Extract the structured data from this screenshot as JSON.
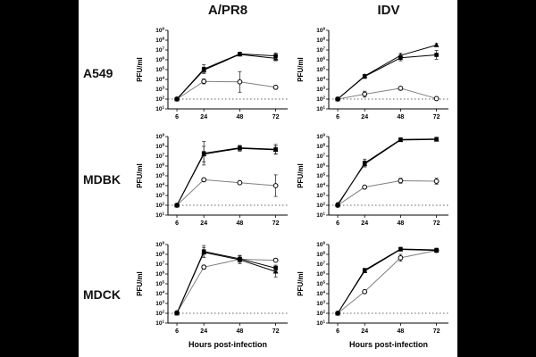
{
  "figure": {
    "background": "#000000",
    "panel_background": "#ffffff",
    "ink_color": "#000000",
    "open_series_line_color": "#808080",
    "columns": [
      "A/PR8",
      "IDV"
    ],
    "rows": [
      "A549",
      "MDBK",
      "MDCK"
    ]
  },
  "axes": {
    "ylabel": "PFU/ml",
    "xlabel": "Hours post-infection",
    "x_ticks": [
      6,
      24,
      48,
      72
    ],
    "x_range": [
      0,
      80
    ],
    "y_scale": "log10",
    "y_tick_exponents": [
      9,
      8,
      7,
      6,
      5,
      4,
      3,
      2,
      1
    ],
    "ylog_range": [
      1,
      9
    ],
    "detection_limit_log10": 2,
    "detection_limit_style": "dotted"
  },
  "chart_data": [
    {
      "type": "line",
      "cell_line": "A549",
      "virus": "A/PR8",
      "show_xlabel": false,
      "x": [
        6,
        24,
        48,
        72
      ],
      "series": [
        {
          "name": "filled-square",
          "marker": "square",
          "log10_values": [
            2.0,
            5.05,
            6.6,
            6.4
          ],
          "log10_err": [
            0,
            0.45,
            0.12,
            0.3
          ]
        },
        {
          "name": "filled-triangle",
          "marker": "triangle",
          "log10_values": [
            2.0,
            4.95,
            6.55,
            6.15
          ],
          "log10_err": [
            0,
            0.3,
            0.1,
            0.25
          ]
        },
        {
          "name": "open-circle",
          "marker": "circle",
          "log10_values": [
            2.0,
            3.8,
            3.75,
            3.2
          ],
          "log10_err": [
            0,
            0.25,
            1.05,
            0.15
          ]
        }
      ]
    },
    {
      "type": "line",
      "cell_line": "A549",
      "virus": "IDV",
      "show_xlabel": false,
      "x": [
        6,
        24,
        48,
        72
      ],
      "series": [
        {
          "name": "filled-square",
          "marker": "square",
          "log10_values": [
            2.0,
            4.3,
            6.2,
            6.5
          ],
          "log10_err": [
            0,
            0.2,
            0.3,
            0.45
          ]
        },
        {
          "name": "filled-triangle",
          "marker": "triangle",
          "log10_values": [
            2.0,
            4.35,
            6.45,
            7.5
          ],
          "log10_err": [
            0,
            0.15,
            0.2,
            0.15
          ]
        },
        {
          "name": "open-circle",
          "marker": "circle",
          "log10_values": [
            2.0,
            2.5,
            3.1,
            2.05
          ],
          "log10_err": [
            0,
            0.3,
            0.1,
            0.1
          ]
        }
      ]
    },
    {
      "type": "line",
      "cell_line": "MDBK",
      "virus": "A/PR8",
      "show_xlabel": false,
      "x": [
        6,
        24,
        48,
        72
      ],
      "series": [
        {
          "name": "filled-square",
          "marker": "square",
          "log10_values": [
            2.0,
            7.3,
            7.85,
            7.7
          ],
          "log10_err": [
            0,
            1.2,
            0.25,
            0.5
          ]
        },
        {
          "name": "filled-triangle",
          "marker": "triangle",
          "log10_values": [
            2.0,
            7.2,
            7.8,
            7.65
          ],
          "log10_err": [
            0,
            0.8,
            0.3,
            0.4
          ]
        },
        {
          "name": "open-circle",
          "marker": "circle",
          "log10_values": [
            2.0,
            4.6,
            4.3,
            4.0
          ],
          "log10_err": [
            0,
            0.15,
            0.15,
            1.1
          ]
        }
      ]
    },
    {
      "type": "line",
      "cell_line": "MDBK",
      "virus": "IDV",
      "show_xlabel": false,
      "x": [
        6,
        24,
        48,
        72
      ],
      "series": [
        {
          "name": "filled-square",
          "marker": "square",
          "log10_values": [
            2.0,
            6.3,
            8.7,
            8.75
          ],
          "log10_err": [
            0,
            0.4,
            0.1,
            0.1
          ]
        },
        {
          "name": "filled-triangle",
          "marker": "triangle",
          "log10_values": [
            2.1,
            6.2,
            8.65,
            8.7
          ],
          "log10_err": [
            0.15,
            0.3,
            0.1,
            0.1
          ]
        },
        {
          "name": "open-circle",
          "marker": "circle",
          "log10_values": [
            2.0,
            3.85,
            4.5,
            4.45
          ],
          "log10_err": [
            0,
            0.1,
            0.25,
            0.3
          ]
        }
      ]
    },
    {
      "type": "line",
      "cell_line": "MDCK",
      "virus": "A/PR8",
      "show_xlabel": true,
      "x": [
        6,
        24,
        48,
        72
      ],
      "series": [
        {
          "name": "filled-square",
          "marker": "square",
          "log10_values": [
            2.0,
            8.3,
            7.55,
            6.6
          ],
          "log10_err": [
            0,
            0.6,
            0.35,
            0.3
          ]
        },
        {
          "name": "filled-triangle",
          "marker": "triangle",
          "log10_values": [
            2.0,
            8.2,
            7.45,
            6.25
          ],
          "log10_err": [
            0,
            0.5,
            0.4,
            0.55
          ]
        },
        {
          "name": "open-circle",
          "marker": "circle",
          "log10_values": [
            2.05,
            6.7,
            7.5,
            7.4
          ],
          "log10_err": [
            0.1,
            0.2,
            0.15,
            0.1
          ]
        }
      ]
    },
    {
      "type": "line",
      "cell_line": "MDCK",
      "virus": "IDV",
      "show_xlabel": true,
      "x": [
        6,
        24,
        48,
        72
      ],
      "series": [
        {
          "name": "filled-square",
          "marker": "square",
          "log10_values": [
            2.0,
            6.4,
            8.55,
            8.45
          ],
          "log10_err": [
            0,
            0.15,
            0.1,
            0.1
          ]
        },
        {
          "name": "filled-triangle",
          "marker": "triangle",
          "log10_values": [
            2.0,
            6.3,
            8.5,
            8.4
          ],
          "log10_err": [
            0,
            0.1,
            0.1,
            0.1
          ]
        },
        {
          "name": "open-circle",
          "marker": "circle",
          "log10_values": [
            2.0,
            4.2,
            7.65,
            8.4
          ],
          "log10_err": [
            0,
            0.1,
            0.35,
            0.1
          ]
        }
      ]
    }
  ]
}
